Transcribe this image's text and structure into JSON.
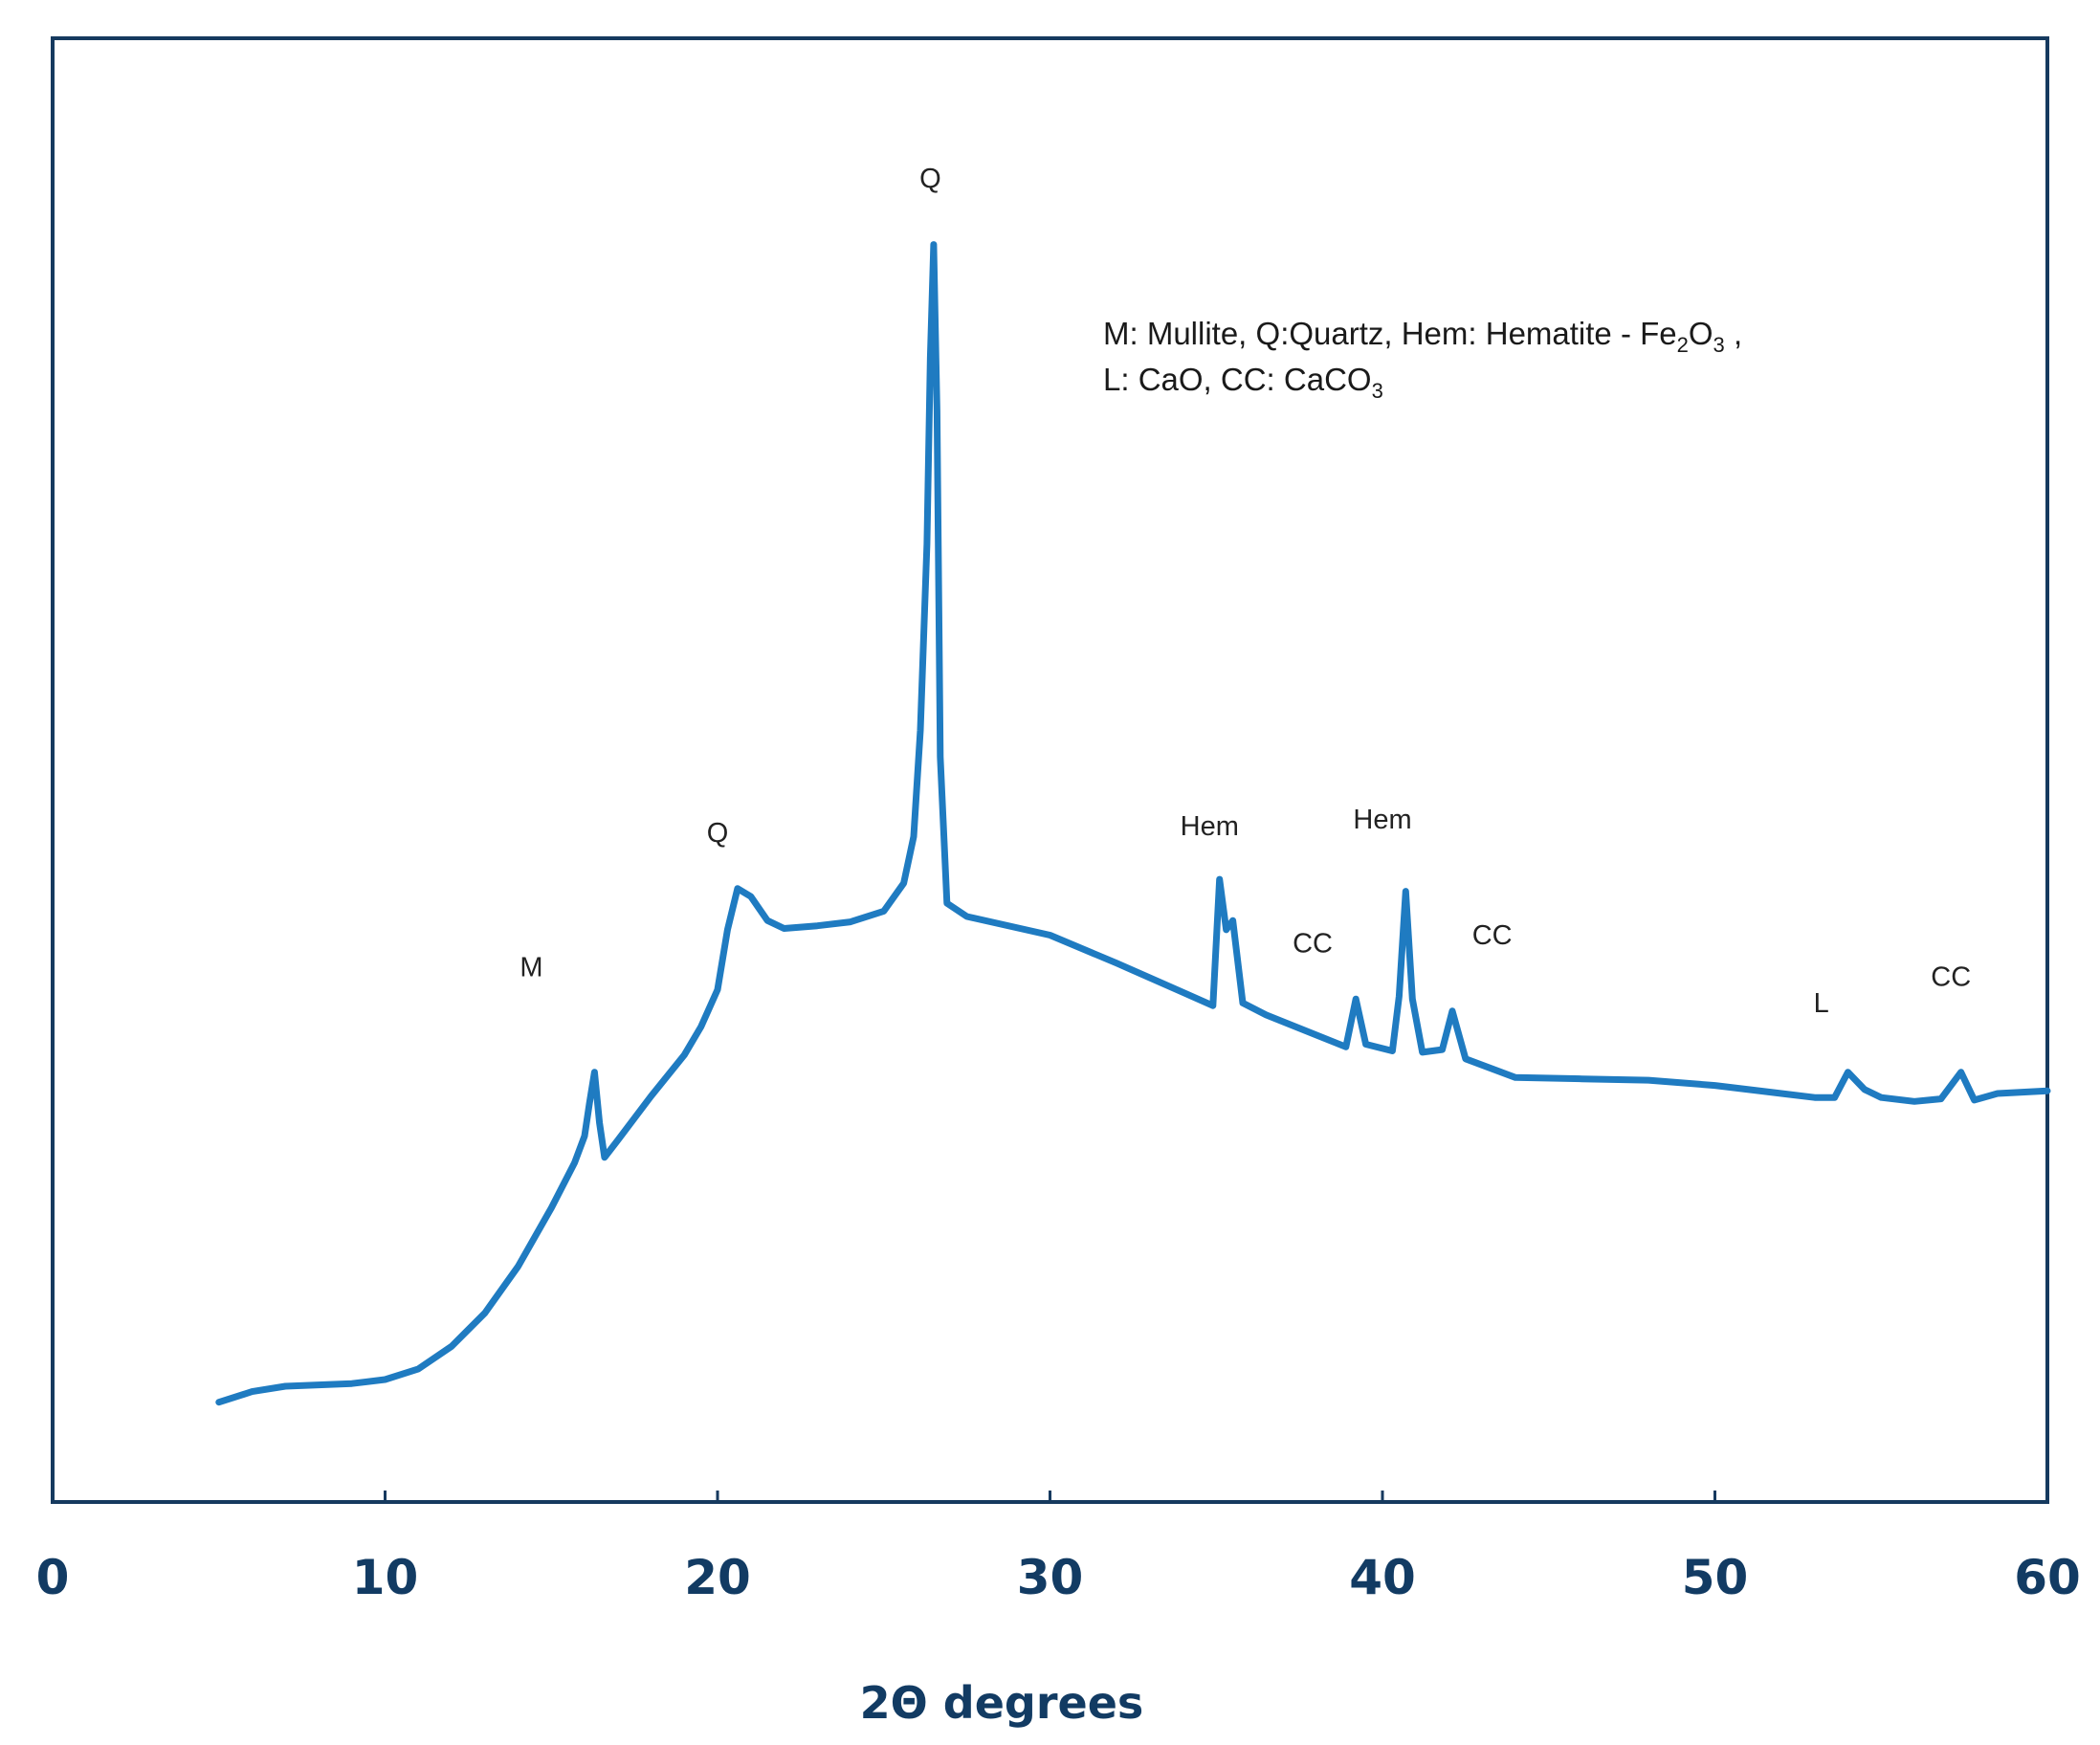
{
  "chart_data": {
    "type": "line",
    "title": "",
    "xlabel": "2Θ degrees",
    "ylabel": "",
    "xlim": [
      0,
      60
    ],
    "ylim": [
      0,
      1.1
    ],
    "xticks": [
      "0",
      "10",
      "20",
      "30",
      "40",
      "50",
      "60"
    ],
    "grid": false,
    "legend_position": "top-right",
    "colors": {
      "line": "#1f7bc1",
      "axis": "#163a5f",
      "tick_text": "#123b63"
    },
    "legend": {
      "line1_main": "M: Mullite, Q:Quartz, Hem: Hematite - Fe",
      "line1_sub1": "2",
      "line1_mid": "O",
      "line1_sub2": "3",
      "line1_end": " ,",
      "line2_main": "L: CaO, CC: CaCO",
      "line2_sub": "3"
    },
    "series": [
      {
        "values": [
          [
            5.0,
            0.075
          ],
          [
            6.0,
            0.083
          ],
          [
            7.0,
            0.087
          ],
          [
            8.0,
            0.088
          ],
          [
            9.0,
            0.089
          ],
          [
            10.0,
            0.092
          ],
          [
            11.0,
            0.1
          ],
          [
            12.0,
            0.117
          ],
          [
            13.0,
            0.142
          ],
          [
            14.0,
            0.177
          ],
          [
            15.0,
            0.221
          ],
          [
            15.7,
            0.255
          ],
          [
            16.0,
            0.275
          ],
          [
            16.15,
            0.3
          ],
          [
            16.3,
            0.323
          ],
          [
            16.45,
            0.285
          ],
          [
            16.6,
            0.259
          ],
          [
            17.0,
            0.272
          ],
          [
            18.0,
            0.305
          ],
          [
            19.0,
            0.336
          ],
          [
            19.5,
            0.357
          ],
          [
            20.0,
            0.385
          ],
          [
            20.3,
            0.43
          ],
          [
            20.6,
            0.461
          ],
          [
            21.0,
            0.455
          ],
          [
            21.5,
            0.437
          ],
          [
            22.0,
            0.431
          ],
          [
            23.0,
            0.433
          ],
          [
            24.0,
            0.436
          ],
          [
            25.0,
            0.444
          ],
          [
            25.6,
            0.465
          ],
          [
            25.9,
            0.5
          ],
          [
            26.1,
            0.58
          ],
          [
            26.3,
            0.72
          ],
          [
            26.4,
            0.86
          ],
          [
            26.5,
            0.945
          ],
          [
            26.6,
            0.82
          ],
          [
            26.7,
            0.56
          ],
          [
            26.9,
            0.45
          ],
          [
            27.5,
            0.44
          ],
          [
            30.0,
            0.426
          ],
          [
            32.0,
            0.405
          ],
          [
            34.0,
            0.383
          ],
          [
            34.9,
            0.373
          ],
          [
            35.1,
            0.468
          ],
          [
            35.3,
            0.43
          ],
          [
            35.5,
            0.437
          ],
          [
            35.8,
            0.375
          ],
          [
            36.5,
            0.366
          ],
          [
            38.0,
            0.351
          ],
          [
            38.9,
            0.342
          ],
          [
            39.2,
            0.378
          ],
          [
            39.5,
            0.344
          ],
          [
            40.3,
            0.339
          ],
          [
            40.5,
            0.38
          ],
          [
            40.7,
            0.459
          ],
          [
            40.9,
            0.378
          ],
          [
            41.2,
            0.338
          ],
          [
            41.8,
            0.34
          ],
          [
            42.1,
            0.369
          ],
          [
            42.5,
            0.333
          ],
          [
            44.0,
            0.319
          ],
          [
            46.0,
            0.318
          ],
          [
            48.0,
            0.317
          ],
          [
            50.0,
            0.313
          ],
          [
            52.0,
            0.307
          ],
          [
            53.0,
            0.304
          ],
          [
            53.6,
            0.304
          ],
          [
            54.0,
            0.323
          ],
          [
            54.5,
            0.31
          ],
          [
            55.0,
            0.304
          ],
          [
            56.0,
            0.301
          ],
          [
            56.8,
            0.303
          ],
          [
            57.4,
            0.323
          ],
          [
            57.8,
            0.302
          ],
          [
            58.5,
            0.307
          ],
          [
            60.0,
            0.309
          ]
        ]
      }
    ],
    "annotations": [
      {
        "text": "M",
        "x": 14.4,
        "y": 0.395
      },
      {
        "text": "Q",
        "x": 20.0,
        "y": 0.496
      },
      {
        "text": "Q",
        "x": 26.4,
        "y": 0.988
      },
      {
        "text": "Hem",
        "x": 34.8,
        "y": 0.501
      },
      {
        "text": "CC",
        "x": 37.9,
        "y": 0.413
      },
      {
        "text": "Hem",
        "x": 40.0,
        "y": 0.506
      },
      {
        "text": "CC",
        "x": 43.3,
        "y": 0.419
      },
      {
        "text": "L",
        "x": 53.2,
        "y": 0.368
      },
      {
        "text": "CC",
        "x": 57.1,
        "y": 0.388
      }
    ]
  }
}
